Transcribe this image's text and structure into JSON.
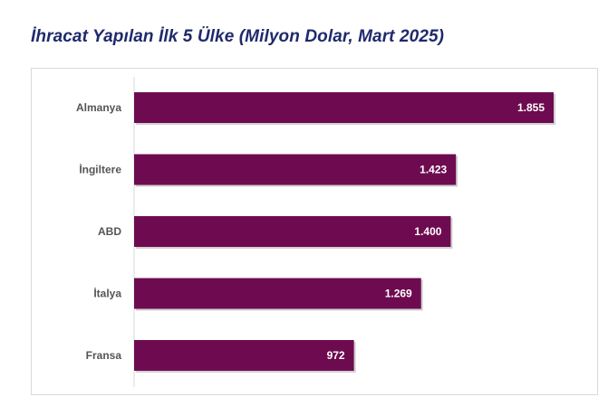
{
  "title": "İhracat Yapılan İlk 5 Ülke (Milyon Dolar, Mart 2025)",
  "colors": {
    "bar": "#6e0b50",
    "title": "#1f2a6b",
    "label": "#555555",
    "axis": "#d9d9d9"
  },
  "chart_data": {
    "type": "bar",
    "orientation": "horizontal",
    "title": "İhracat Yapılan İlk 5 Ülke (Milyon Dolar, Mart 2025)",
    "categories": [
      "Almanya",
      "İngiltere",
      "ABD",
      "İtalya",
      "Fransa"
    ],
    "values": [
      1855,
      1423,
      1400,
      1269,
      972
    ],
    "data_labels": [
      "1.855",
      "1.423",
      "1.400",
      "1.269",
      "972"
    ],
    "xlim": [
      0,
      1855
    ],
    "grid": false,
    "legend": "none"
  }
}
